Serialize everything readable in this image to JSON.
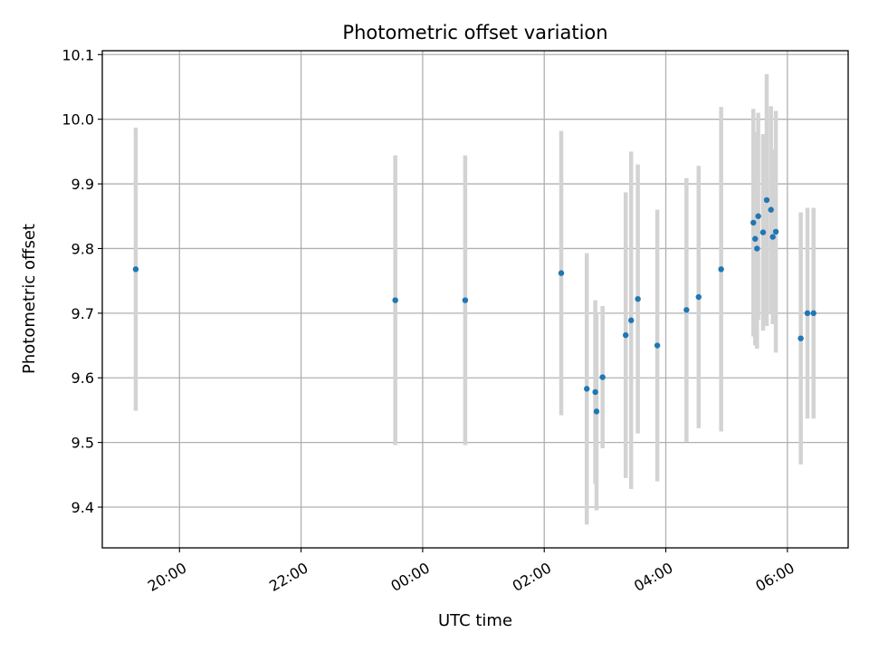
{
  "chart_data": {
    "type": "scatter",
    "title": "Photometric offset variation",
    "xlabel": "UTC time",
    "ylabel": "Photometric offset",
    "x_unit": "hours",
    "x_tick_values": [
      20,
      22,
      24,
      26,
      28,
      30
    ],
    "x_tick_labels": [
      "20:00",
      "22:00",
      "00:00",
      "02:00",
      "04:00",
      "06:00"
    ],
    "xlim": [
      18.73,
      31.0
    ],
    "ylim": [
      9.337,
      10.106
    ],
    "y_ticks": [
      9.4,
      9.5,
      9.6,
      9.7,
      9.8,
      9.9,
      10.0,
      10.1
    ],
    "y_tick_labels": [
      "9.4",
      "9.5",
      "9.6",
      "9.7",
      "9.8",
      "9.9",
      "10.0",
      "10.1"
    ],
    "grid": true,
    "colors": {
      "point": "#1f77b4",
      "errorbar": "#d3d3d3",
      "grid": "#b0b0b0"
    },
    "points": [
      {
        "x": 19.28,
        "y": 9.768,
        "err": 0.219
      },
      {
        "x": 23.55,
        "y": 9.72,
        "err": 0.224
      },
      {
        "x": 24.7,
        "y": 9.72,
        "err": 0.224
      },
      {
        "x": 26.28,
        "y": 9.762,
        "err": 0.22
      },
      {
        "x": 26.7,
        "y": 9.583,
        "err": 0.21
      },
      {
        "x": 26.84,
        "y": 9.578,
        "err": 0.142
      },
      {
        "x": 26.86,
        "y": 9.548,
        "err": 0.153
      },
      {
        "x": 26.96,
        "y": 9.601,
        "err": 0.11
      },
      {
        "x": 27.34,
        "y": 9.666,
        "err": 0.221
      },
      {
        "x": 27.43,
        "y": 9.689,
        "err": 0.261
      },
      {
        "x": 27.54,
        "y": 9.722,
        "err": 0.208
      },
      {
        "x": 27.86,
        "y": 9.65,
        "err": 0.21
      },
      {
        "x": 28.34,
        "y": 9.705,
        "err": 0.204
      },
      {
        "x": 28.54,
        "y": 9.725,
        "err": 0.203
      },
      {
        "x": 28.91,
        "y": 9.768,
        "err": 0.251
      },
      {
        "x": 29.44,
        "y": 9.84,
        "err": 0.176
      },
      {
        "x": 29.47,
        "y": 9.815,
        "err": 0.165
      },
      {
        "x": 29.5,
        "y": 9.8,
        "err": 0.155
      },
      {
        "x": 29.52,
        "y": 9.85,
        "err": 0.16
      },
      {
        "x": 29.6,
        "y": 9.825,
        "err": 0.152
      },
      {
        "x": 29.66,
        "y": 9.875,
        "err": 0.195
      },
      {
        "x": 29.73,
        "y": 9.86,
        "err": 0.16
      },
      {
        "x": 29.76,
        "y": 9.818,
        "err": 0.135
      },
      {
        "x": 29.81,
        "y": 9.826,
        "err": 0.187
      },
      {
        "x": 30.22,
        "y": 9.661,
        "err": 0.195
      },
      {
        "x": 30.33,
        "y": 9.7,
        "err": 0.163
      },
      {
        "x": 30.43,
        "y": 9.7,
        "err": 0.163
      }
    ]
  }
}
